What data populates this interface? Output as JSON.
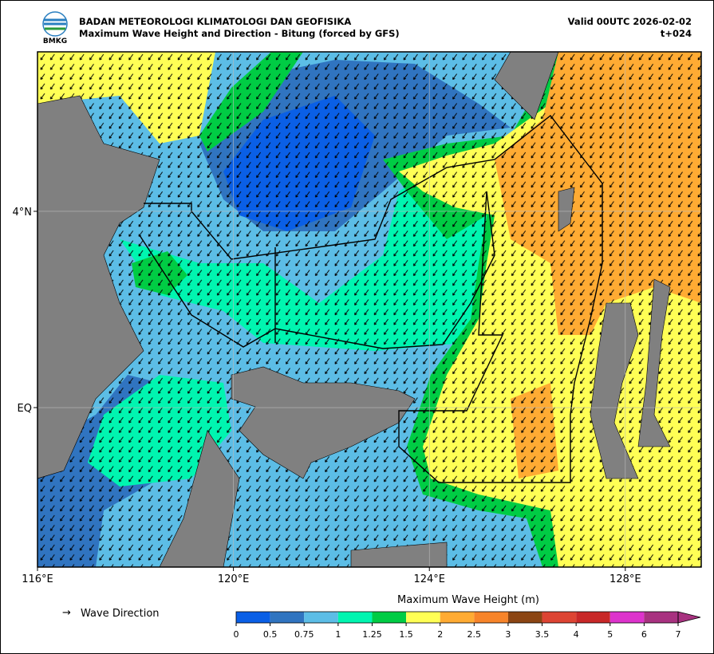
{
  "header": {
    "logo_text": "BMKG",
    "title": "BADAN METEOROLOGI KLIMATOLOGI DAN GEOFISIKA",
    "subtitle": "Maximum Wave Height and Direction - Bitung (forced by GFS)",
    "valid": "Valid 00UTC 2026-02-02",
    "lead": "t+024"
  },
  "map": {
    "lon_range": [
      116,
      129.55
    ],
    "lat_range": [
      -3.25,
      7.25
    ],
    "lon_ticks": [
      {
        "value": 116,
        "label": "116°E"
      },
      {
        "value": 120,
        "label": "120°E"
      },
      {
        "value": 124,
        "label": "124°E"
      },
      {
        "value": 128,
        "label": "128°E"
      }
    ],
    "lat_ticks": [
      {
        "value": 4,
        "label": "4°N"
      },
      {
        "value": 0,
        "label": "EQ"
      }
    ],
    "grid": true,
    "legend": {
      "symbol": "→",
      "label": "Wave Direction"
    },
    "colorbar": {
      "title": "Maximum Wave Height (m)",
      "bins": [
        0,
        0.5,
        0.75,
        1,
        1.25,
        1.5,
        2,
        2.5,
        3,
        3.5,
        4,
        5,
        6,
        7
      ],
      "colors": [
        "#0a5fe6",
        "#3074c0",
        "#5cbde6",
        "#00f5b0",
        "#00cc44",
        "#ffff55",
        "#ffab33",
        "#f7842a",
        "#8b4513",
        "#dd4433",
        "#c82828",
        "#dd33cc",
        "#a83280"
      ],
      "extend_color": "#a83280"
    }
  }
}
